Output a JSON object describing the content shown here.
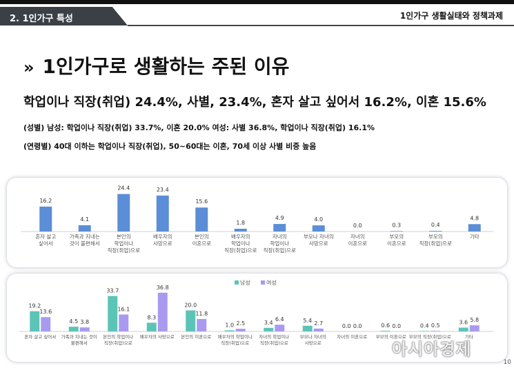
{
  "header": {
    "section": "2. 1인가구 특성",
    "report": "1인가구 생활실태와 정책과제"
  },
  "slide": {
    "bullet": "»",
    "title": "1인가구로 생활하는 주된 이유",
    "subtitle": "학업이나 직장(취업) 24.4%, 사별, 23.4%, 혼자 살고 싶어서 16.2%, 이혼 15.6%",
    "note_gender": "(성별) 남성: 학업이나 직장(취업) 33.7%, 이혼 20.0%  여성: 사별 36.8%, 학업이나 직장(취업) 16.1%",
    "note_age": "(연령별) 40대 이하는 학업이나 직장(취업), 50~60대는 이혼, 70세 이상 사별 비중 높음"
  },
  "colors": {
    "total": "#5b8ed6",
    "male": "#5cc4b7",
    "female": "#a99af0"
  },
  "chart_data": [
    {
      "type": "bar",
      "categories": [
        [
          "혼자 살고",
          "싶어서"
        ],
        [
          "가족과 지내는",
          "것이 불편해서"
        ],
        [
          "본인의",
          "학업이나",
          "직장(취업)으로"
        ],
        [
          "배우자의",
          "사망으로"
        ],
        [
          "본인의",
          "이혼으로"
        ],
        [
          "배우자의",
          "학업이나",
          "직장(취업)으로"
        ],
        [
          "자녀의",
          "학업이나",
          "직장(취업)으로"
        ],
        [
          "부모나 자녀의",
          "사망으로"
        ],
        [
          "자녀의",
          "이혼으로"
        ],
        [
          "부모의",
          "이혼으로"
        ],
        [
          "부모의",
          "직장(취업)으로"
        ],
        [
          "기타"
        ]
      ],
      "values": [
        16.2,
        4.1,
        24.4,
        23.4,
        15.6,
        1.8,
        4.9,
        4.0,
        0.0,
        0.3,
        0.4,
        4.8
      ],
      "value_labels": [
        "16.2",
        "4.1",
        "24.4",
        "23.4",
        "15.6",
        "1.8",
        "4.9",
        "4.0",
        "0.0",
        "0.3",
        "0.4",
        "4.8"
      ],
      "ylim": [
        0,
        26
      ]
    },
    {
      "type": "bar",
      "categories": [
        [
          "혼자 살고 싶어서"
        ],
        [
          "가족과 지내는 것이",
          "불편해서"
        ],
        [
          "본인의 학업이나",
          "직장(취업)으로"
        ],
        [
          "배우자의 사망으로"
        ],
        [
          "본인의 이혼으로"
        ],
        [
          "배우자의 학업이나",
          "직장(취업)으로"
        ],
        [
          "자녀의 학업이나",
          "직장(취업)으로"
        ],
        [
          "부모나 자녀의",
          "사망으로"
        ],
        [
          "자녀의 이혼으로"
        ],
        [
          "부모의 이혼으로"
        ],
        [
          "부모의 직장(취업)으로"
        ],
        [
          "기타"
        ]
      ],
      "legend": [
        "남성",
        "여성"
      ],
      "legend_position": "top-center",
      "series": [
        {
          "name": "남성",
          "values": [
            19.2,
            4.5,
            33.7,
            8.3,
            20.0,
            1.0,
            3.4,
            5.4,
            0.0,
            0.6,
            0.4,
            3.6
          ],
          "value_labels": [
            "19.2",
            "4.5",
            "33.7",
            "8.3",
            "20.0",
            "1.0",
            "3.4",
            "5.4",
            "0.0",
            "0.6",
            "0.4",
            "3.6"
          ]
        },
        {
          "name": "여성",
          "values": [
            13.6,
            3.8,
            16.1,
            36.8,
            11.8,
            2.5,
            6.4,
            2.7,
            0.0,
            0.0,
            0.5,
            5.8
          ],
          "value_labels": [
            "13.6",
            "3.8",
            "16.1",
            "36.8",
            "11.8",
            "2.5",
            "6.4",
            "2.7",
            "0.0",
            "0.0",
            "0.5",
            "5.8"
          ]
        }
      ],
      "ylim": [
        0,
        38
      ]
    }
  ],
  "watermark": "아시아경제",
  "page_number": "10"
}
